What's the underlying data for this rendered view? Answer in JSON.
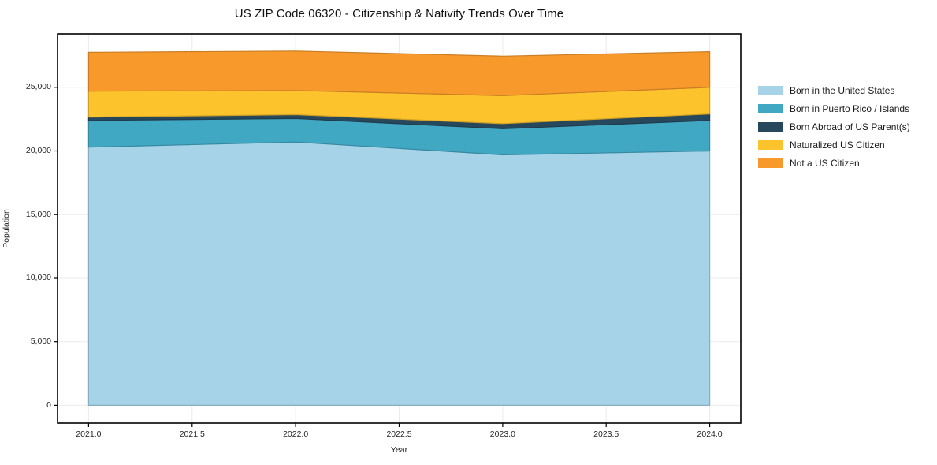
{
  "page": {
    "background": "#ffffff"
  },
  "chart_data": {
    "type": "area",
    "stacked": true,
    "title": "US ZIP Code 06320 - Citizenship & Nativity Trends Over Time",
    "xlabel": "Year",
    "ylabel": "Population",
    "x": [
      2021,
      2022,
      2023,
      2024
    ],
    "series": [
      {
        "name": "Born in the United States",
        "color": "#a6d3e8",
        "values": [
          20300,
          20700,
          19700,
          20000
        ]
      },
      {
        "name": "Born in Puerto Rico / Islands",
        "color": "#41a8c4",
        "values": [
          2100,
          1850,
          2050,
          2400
        ]
      },
      {
        "name": "Born Abroad of US Parent(s)",
        "color": "#27485c",
        "values": [
          250,
          300,
          400,
          500
        ]
      },
      {
        "name": "Naturalized US Citizen",
        "color": "#fcc32d",
        "values": [
          2050,
          1900,
          2200,
          2100
        ]
      },
      {
        "name": "Not a US Citizen",
        "color": "#f8992b",
        "values": [
          3050,
          3100,
          3100,
          2800
        ]
      }
    ],
    "xticks": [
      {
        "value": 2021.0,
        "label": "2021.0"
      },
      {
        "value": 2021.5,
        "label": "2021.5"
      },
      {
        "value": 2022.0,
        "label": "2022.0"
      },
      {
        "value": 2022.5,
        "label": "2022.5"
      },
      {
        "value": 2023.0,
        "label": "2023.0"
      },
      {
        "value": 2023.5,
        "label": "2023.5"
      },
      {
        "value": 2024.0,
        "label": "2024.0"
      }
    ],
    "yticks": [
      {
        "value": 0,
        "label": "0"
      },
      {
        "value": 5000,
        "label": "5,000"
      },
      {
        "value": 10000,
        "label": "10,000"
      },
      {
        "value": 15000,
        "label": "15,000"
      },
      {
        "value": 20000,
        "label": "20,000"
      },
      {
        "value": 25000,
        "label": "25,000"
      }
    ],
    "xlim": [
      2020.85,
      2024.15
    ],
    "ylim": [
      -1400,
      29200
    ],
    "grid": true,
    "legend_position": "right-outside",
    "legend_frame": false
  },
  "colors": {
    "spine": "#000000",
    "grid": "#ebebeb",
    "tick_text": "#262626",
    "title_text": "#111111"
  }
}
